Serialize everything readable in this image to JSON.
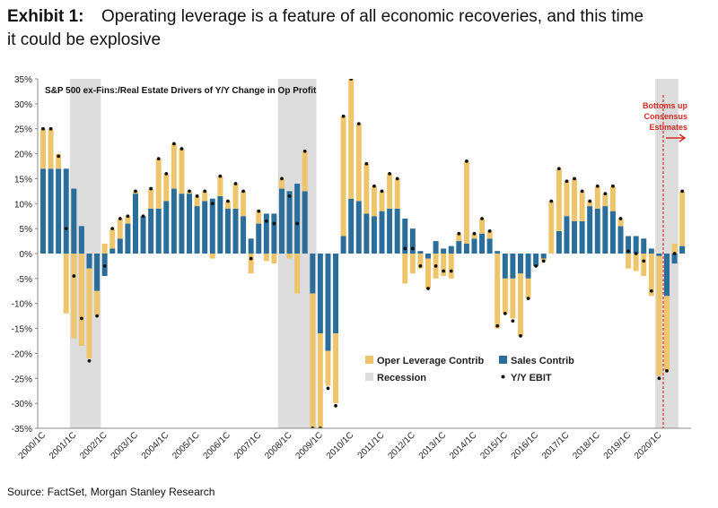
{
  "chart_data": {
    "type": "stacked-bar-dot",
    "title_label": "Exhibit 1:",
    "title": [
      "Operating leverage is a feature of all economic recoveries, and this time",
      "it could be explosive"
    ],
    "subtitle": "S&P 500 ex-Fins:/Real Estate Drivers of Y/Y Change in Op Profit",
    "source": "Source: FactSet, Morgan Stanley Research",
    "annotation": [
      "Bottoms up",
      "Consensus",
      "Estimates"
    ],
    "categories": [
      "2000/1C",
      null,
      null,
      null,
      "2001/1C",
      null,
      null,
      null,
      "2002/1C",
      null,
      null,
      null,
      "2003/1C",
      null,
      null,
      null,
      "2004/1C",
      null,
      null,
      null,
      "2005/1C",
      null,
      null,
      null,
      "2006/1C",
      null,
      null,
      null,
      "2007/1C",
      null,
      null,
      null,
      "2008/1C",
      null,
      null,
      null,
      "2009/1C",
      null,
      null,
      null,
      "2010/1C",
      null,
      null,
      null,
      "2011/1C",
      null,
      null,
      null,
      "2012/1C",
      null,
      null,
      null,
      "2013/1C",
      null,
      null,
      null,
      "2014/1C",
      null,
      null,
      null,
      "2015/1C",
      null,
      null,
      null,
      "2016/1C",
      null,
      null,
      null,
      "2017/1C",
      null,
      null,
      null,
      "2018/1C",
      null,
      null,
      null,
      "2019/1C",
      null,
      null,
      null,
      "2020/1C",
      null,
      null,
      null
    ],
    "series": [
      {
        "name": "Oper Leverage Contrib",
        "color": "#efc56c",
        "values": [
          8,
          8,
          3,
          -12,
          -17,
          -18.5,
          -18,
          -5,
          2,
          4,
          4,
          1.5,
          0.5,
          0,
          4,
          10,
          5.5,
          9,
          9,
          0.5,
          2,
          2,
          -1,
          4,
          1.5,
          5,
          5,
          -4,
          2.5,
          -1.5,
          -2,
          2,
          -1,
          -8,
          8,
          -27,
          -19,
          -7,
          -14,
          24,
          24,
          15.5,
          10,
          6,
          4,
          7,
          6,
          -6,
          -4,
          -3,
          -6,
          -5,
          -4.5,
          -5,
          1.5,
          16.5,
          1,
          3,
          1.5,
          -15,
          -7,
          -8,
          -12.5,
          -4,
          0,
          -0.5,
          10.5,
          12.5,
          7,
          8.5,
          6,
          1,
          4.5,
          2.5,
          5,
          1.5,
          -3,
          -3.5,
          -4.5,
          -8.5,
          -24,
          -15,
          2,
          11
        ]
      },
      {
        "name": "Sales Contrib",
        "color": "#2b6e9b",
        "values": [
          17,
          17,
          17,
          17,
          13,
          5.5,
          -3,
          -7.5,
          -4.5,
          1,
          3,
          6,
          12,
          7.5,
          9,
          9,
          10.5,
          13,
          12,
          12,
          9.5,
          10.5,
          11,
          11.5,
          9,
          9,
          7.5,
          3,
          6,
          8,
          8,
          13,
          12.5,
          14,
          12.5,
          -8,
          -16,
          -19.5,
          -16,
          3.5,
          11,
          10.5,
          8,
          7.5,
          8.5,
          9,
          9,
          7,
          5,
          0.5,
          -1,
          2.5,
          1,
          1.5,
          2.5,
          2,
          3,
          4,
          3,
          0.5,
          -5,
          -5,
          -4,
          -5,
          -2.5,
          -1,
          0,
          4.5,
          7.5,
          6.5,
          6.5,
          9.5,
          9,
          9.5,
          8.5,
          5.5,
          3.5,
          3.5,
          3,
          1,
          -0.5,
          -8.5,
          -2,
          1.5
        ]
      }
    ],
    "ebit": {
      "name": "Y/Y EBIT",
      "color": "#111111",
      "values": [
        25,
        25,
        19.5,
        5,
        -4.5,
        -13,
        -21.5,
        -12.5,
        -2.5,
        5,
        7,
        7.5,
        12.5,
        7.5,
        13,
        19,
        16,
        22,
        21,
        12.5,
        11.5,
        12.5,
        10,
        15.5,
        10.5,
        14,
        12.5,
        -1,
        8.5,
        6.5,
        6,
        15,
        11.5,
        6,
        20.5,
        -35,
        -35,
        -27,
        -30.5,
        27.5,
        35,
        26,
        18,
        13.5,
        12.5,
        16,
        15,
        1,
        1,
        -2.5,
        -7,
        -2.5,
        -3.5,
        -3.5,
        4,
        18.5,
        4,
        7,
        4.5,
        -14.5,
        -12,
        -13.5,
        -16.5,
        -9,
        -2.5,
        -1.5,
        10.5,
        17,
        14.5,
        15,
        12.5,
        10.5,
        13.5,
        12,
        13.5,
        7,
        0.5,
        0,
        -1.5,
        -7.5,
        -25,
        -23.5,
        0,
        12.5
      ]
    },
    "recession": {
      "name": "Recession",
      "color": "#dcdcdc",
      "spans": [
        [
          4,
          7
        ],
        [
          31,
          35
        ],
        [
          80,
          82
        ]
      ]
    },
    "ylim": [
      -35,
      35
    ],
    "yticks": [
      {
        "value": 35,
        "label": "35%"
      },
      {
        "value": 30,
        "label": "30%"
      },
      {
        "value": 25,
        "label": "25%"
      },
      {
        "value": 20,
        "label": "20%"
      },
      {
        "value": 15,
        "label": "15%"
      },
      {
        "value": 10,
        "label": "10%"
      },
      {
        "value": 5,
        "label": "5%"
      },
      {
        "value": 0,
        "label": "0%"
      },
      {
        "value": -5,
        "label": "-5%"
      },
      {
        "value": -10,
        "label": "-10%"
      },
      {
        "value": -15,
        "label": "-15%"
      },
      {
        "value": -20,
        "label": "-20%"
      },
      {
        "value": -25,
        "label": "-25%"
      },
      {
        "value": -30,
        "label": "-30%"
      },
      {
        "value": -35,
        "label": "-35%"
      }
    ],
    "grid": false
  }
}
